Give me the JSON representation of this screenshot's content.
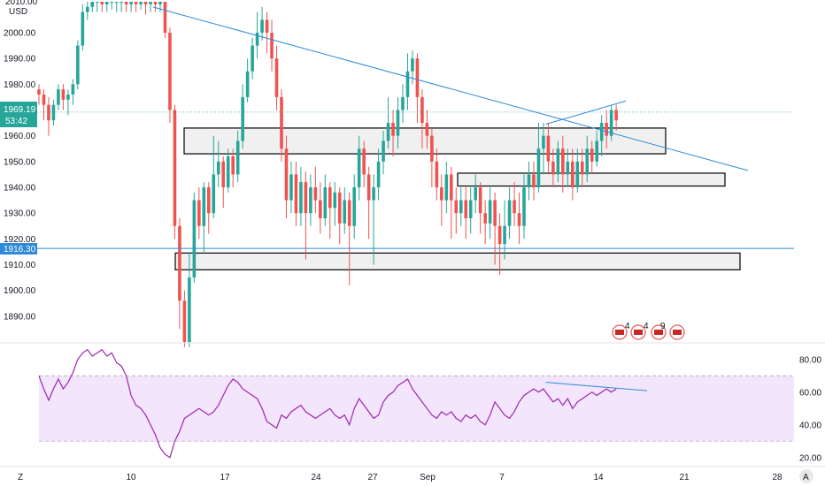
{
  "price_axis": {
    "currency": "USD",
    "top_label": "2010.00",
    "ticks": [
      "2000.00",
      "1990.00",
      "1980.00",
      "1970.00",
      "1960.00",
      "1950.00",
      "1940.00",
      "1930.00",
      "1920.00",
      "1910.00",
      "1900.00",
      "1890.00"
    ],
    "price_tag": "1969.19",
    "countdown_tag": "53:42",
    "level_tag": "1916.30"
  },
  "time_axis": {
    "ticks": [
      "10",
      "17",
      "24",
      "27",
      "Sep",
      "7",
      "14",
      "21",
      "28"
    ]
  },
  "rsi_axis": {
    "ticks": [
      "80.00",
      "60.00",
      "40.00",
      "20.00"
    ]
  },
  "corner_buttons": {
    "left": "Z",
    "right": "A"
  },
  "event_icons": [
    "4",
    "4",
    "9"
  ],
  "colors": {
    "up": "#26a69a",
    "down": "#ef5350",
    "trend": "#2e8ad8",
    "rsi": "#9c27b0",
    "rsi_band": "#f3e5fb",
    "zone_fill": "#f0f0f0",
    "price_tag_bg": "#26a69a",
    "level_tag_bg": "#2e8ad8"
  },
  "chart_data": {
    "type": "candlestick",
    "price_range": [
      1880,
      2012
    ],
    "rsi_range": [
      15,
      88
    ],
    "current_price": 1969.19,
    "horizontal_level": 1916.3,
    "zones": [
      {
        "label": "",
        "from": 1953,
        "to": 1963
      },
      {
        "label": "",
        "from": 1940.5,
        "to": 1945.5
      },
      {
        "label": "",
        "from": 1908,
        "to": 1914.5
      }
    ],
    "trendlines": [
      {
        "from": {
          "bar": 23.5,
          "price": 2010
        },
        "to": {
          "bar": 146.2,
          "price": 1946.5
        }
      },
      {
        "from": {
          "bar": 104.5,
          "price": 1964.5
        },
        "to": {
          "bar": 121.0,
          "price": 1973.5
        }
      }
    ],
    "rsi_levels": [
      70,
      30
    ],
    "rsi_divergence": {
      "from": {
        "bar": 104.5,
        "value": 66
      },
      "to": {
        "bar": 119.0,
        "value": 62
      }
    },
    "candles": [
      [
        1978,
        1976,
        1980,
        1972
      ],
      [
        1976,
        1972,
        1978,
        1966
      ],
      [
        1972,
        1966,
        1975,
        1960
      ],
      [
        1966,
        1972,
        1974,
        1964
      ],
      [
        1972,
        1978,
        1980,
        1970
      ],
      [
        1978,
        1974,
        1980,
        1970
      ],
      [
        1974,
        1976,
        1978,
        1968
      ],
      [
        1976,
        1980,
        1982,
        1972
      ],
      [
        1980,
        1995,
        1997,
        1978
      ],
      [
        1995,
        2008,
        2011,
        1993
      ],
      [
        2008,
        2010,
        2012,
        2005
      ],
      [
        2010,
        2012,
        2012,
        2008
      ],
      [
        2012,
        2012,
        2012,
        2008
      ],
      [
        2012,
        2011,
        2012,
        2008
      ],
      [
        2011,
        2012,
        2012,
        2008
      ],
      [
        2012,
        2012,
        2012,
        2009
      ],
      [
        2012,
        2012,
        2012,
        2008
      ],
      [
        2012,
        2012,
        2012,
        2008
      ],
      [
        2012,
        2011,
        2012,
        2008
      ],
      [
        2011,
        2012,
        2012,
        2008
      ],
      [
        2012,
        2011,
        2012,
        2008
      ],
      [
        2011,
        2012,
        2012,
        2009
      ],
      [
        2012,
        2011,
        2012,
        2007
      ],
      [
        2011,
        2012,
        2012,
        2008
      ],
      [
        2012,
        2011,
        2012,
        2008
      ],
      [
        2011,
        2012,
        2012,
        2008
      ],
      [
        2012,
        2000,
        2012,
        1998
      ],
      [
        2000,
        1970,
        2002,
        1965
      ],
      [
        1970,
        1925,
        1972,
        1920
      ],
      [
        1925,
        1896,
        1928,
        1885
      ],
      [
        1896,
        1880,
        1900,
        1878
      ],
      [
        1880,
        1905,
        1915,
        1878
      ],
      [
        1905,
        1935,
        1938,
        1903
      ],
      [
        1935,
        1925,
        1940,
        1920
      ],
      [
        1925,
        1940,
        1942,
        1915
      ],
      [
        1940,
        1930,
        1942,
        1922
      ],
      [
        1930,
        1945,
        1960,
        1928
      ],
      [
        1945,
        1950,
        1958,
        1940
      ],
      [
        1950,
        1940,
        1952,
        1932
      ],
      [
        1940,
        1952,
        1955,
        1938
      ],
      [
        1952,
        1945,
        1955,
        1940
      ],
      [
        1945,
        1958,
        1962,
        1942
      ],
      [
        1958,
        1975,
        1980,
        1955
      ],
      [
        1975,
        1985,
        1990,
        1973
      ],
      [
        1985,
        1995,
        1998,
        1982
      ],
      [
        1995,
        2000,
        2008,
        1990
      ],
      [
        2000,
        2005,
        2010,
        1997
      ],
      [
        2005,
        2000,
        2008,
        1992
      ],
      [
        2000,
        1990,
        2005,
        1985
      ],
      [
        1990,
        1975,
        1995,
        1970
      ],
      [
        1975,
        1955,
        1978,
        1950
      ],
      [
        1955,
        1935,
        1960,
        1928
      ],
      [
        1935,
        1945,
        1950,
        1930
      ],
      [
        1945,
        1930,
        1950,
        1925
      ],
      [
        1930,
        1942,
        1948,
        1925
      ],
      [
        1942,
        1930,
        1946,
        1912
      ],
      [
        1930,
        1940,
        1945,
        1925
      ],
      [
        1940,
        1935,
        1948,
        1930
      ],
      [
        1935,
        1928,
        1942,
        1922
      ],
      [
        1928,
        1940,
        1945,
        1925
      ],
      [
        1940,
        1932,
        1942,
        1920
      ],
      [
        1932,
        1938,
        1942,
        1925
      ],
      [
        1938,
        1926,
        1940,
        1918
      ],
      [
        1926,
        1935,
        1940,
        1922
      ],
      [
        1935,
        1925,
        1938,
        1902
      ],
      [
        1925,
        1940,
        1945,
        1920
      ],
      [
        1940,
        1955,
        1960,
        1935
      ],
      [
        1955,
        1945,
        1958,
        1940
      ],
      [
        1945,
        1935,
        1948,
        1920
      ],
      [
        1935,
        1940,
        1945,
        1910
      ],
      [
        1940,
        1950,
        1955,
        1935
      ],
      [
        1950,
        1958,
        1962,
        1945
      ],
      [
        1958,
        1965,
        1975,
        1955
      ],
      [
        1965,
        1960,
        1970,
        1952
      ],
      [
        1960,
        1970,
        1975,
        1955
      ],
      [
        1970,
        1975,
        1980,
        1965
      ],
      [
        1975,
        1985,
        1992,
        1970
      ],
      [
        1985,
        1990,
        1993,
        1980
      ],
      [
        1990,
        1975,
        1992,
        1965
      ],
      [
        1975,
        1965,
        1978,
        1955
      ],
      [
        1965,
        1960,
        1970,
        1955
      ],
      [
        1960,
        1950,
        1963,
        1940
      ],
      [
        1950,
        1940,
        1955,
        1935
      ],
      [
        1940,
        1935,
        1945,
        1925
      ],
      [
        1935,
        1945,
        1950,
        1930
      ],
      [
        1945,
        1935,
        1948,
        1920
      ],
      [
        1935,
        1930,
        1940,
        1922
      ],
      [
        1930,
        1935,
        1940,
        1925
      ],
      [
        1935,
        1928,
        1940,
        1920
      ],
      [
        1928,
        1935,
        1940,
        1922
      ],
      [
        1935,
        1940,
        1945,
        1930
      ],
      [
        1940,
        1930,
        1942,
        1922
      ],
      [
        1930,
        1926,
        1935,
        1918
      ],
      [
        1926,
        1935,
        1940,
        1920
      ],
      [
        1935,
        1925,
        1938,
        1910
      ],
      [
        1925,
        1918,
        1930,
        1906
      ],
      [
        1918,
        1925,
        1935,
        1912
      ],
      [
        1925,
        1935,
        1940,
        1920
      ],
      [
        1935,
        1930,
        1942,
        1925
      ],
      [
        1930,
        1925,
        1938,
        1918
      ],
      [
        1925,
        1940,
        1945,
        1920
      ],
      [
        1940,
        1945,
        1950,
        1935
      ],
      [
        1945,
        1940,
        1950,
        1935
      ],
      [
        1940,
        1955,
        1965,
        1938
      ],
      [
        1955,
        1960,
        1965,
        1945
      ],
      [
        1960,
        1950,
        1965,
        1945
      ],
      [
        1950,
        1945,
        1955,
        1940
      ],
      [
        1945,
        1955,
        1958,
        1942
      ],
      [
        1955,
        1945,
        1960,
        1938
      ],
      [
        1945,
        1950,
        1955,
        1940
      ],
      [
        1950,
        1940,
        1955,
        1935
      ],
      [
        1940,
        1950,
        1955,
        1938
      ],
      [
        1950,
        1945,
        1955,
        1940
      ],
      [
        1945,
        1955,
        1960,
        1942
      ],
      [
        1955,
        1950,
        1958,
        1945
      ],
      [
        1950,
        1958,
        1962,
        1948
      ],
      [
        1958,
        1965,
        1968,
        1952
      ],
      [
        1965,
        1960,
        1970,
        1955
      ],
      [
        1960,
        1970,
        1972,
        1958
      ],
      [
        1970,
        1966,
        1972,
        1962
      ]
    ],
    "rsi": [
      70,
      62,
      55,
      62,
      68,
      62,
      66,
      72,
      80,
      84,
      86,
      82,
      84,
      86,
      82,
      84,
      78,
      76,
      70,
      58,
      52,
      50,
      46,
      40,
      34,
      26,
      22,
      20,
      30,
      36,
      44,
      46,
      48,
      50,
      48,
      46,
      48,
      52,
      58,
      64,
      68,
      66,
      62,
      60,
      58,
      56,
      50,
      42,
      40,
      38,
      46,
      44,
      48,
      50,
      52,
      48,
      46,
      44,
      46,
      48,
      50,
      46,
      44,
      46,
      40,
      50,
      56,
      52,
      48,
      44,
      46,
      54,
      58,
      60,
      64,
      66,
      68,
      62,
      58,
      54,
      50,
      46,
      44,
      48,
      46,
      48,
      44,
      42,
      46,
      44,
      46,
      42,
      40,
      46,
      54,
      50,
      46,
      44,
      48,
      54,
      58,
      60,
      62,
      60,
      62,
      58,
      54,
      56,
      52,
      56,
      50,
      54,
      56,
      58,
      60,
      58,
      60,
      62,
      60,
      62
    ]
  }
}
